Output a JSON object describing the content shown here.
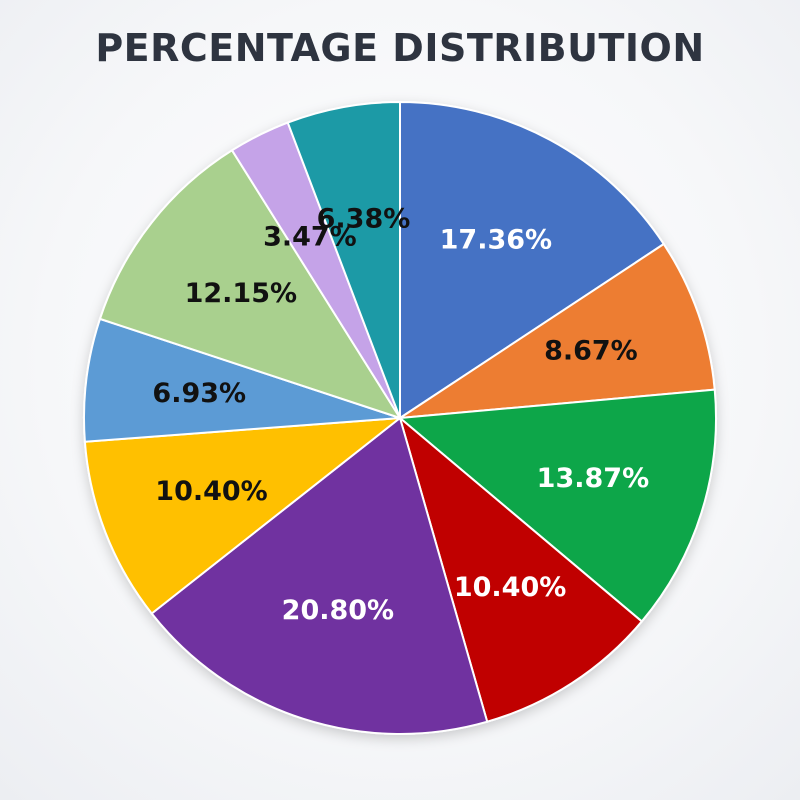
{
  "chart_data": {
    "type": "pie",
    "title": "PERCENTAGE DISTRIBUTION",
    "start_angle_deg": 0,
    "direction": "clockwise",
    "slices": [
      {
        "label": "17.36%",
        "value": 17.36,
        "color": "#4472c4",
        "text_color": "#ffffff"
      },
      {
        "label": "8.67%",
        "value": 8.67,
        "color": "#ed7d31",
        "text_color": "#111111"
      },
      {
        "label": "13.87%",
        "value": 13.87,
        "color": "#0fa64a",
        "text_color": "#ffffff"
      },
      {
        "label": "10.40%",
        "value": 10.4,
        "color": "#c00000",
        "text_color": "#ffffff"
      },
      {
        "label": "20.80%",
        "value": 20.8,
        "color": "#7030a0",
        "text_color": "#ffffff"
      },
      {
        "label": "10.40%",
        "value": 10.4,
        "color": "#ffc000",
        "text_color": "#111111"
      },
      {
        "label": "6.93%",
        "value": 6.93,
        "color": "#5b9bd5",
        "text_color": "#111111"
      },
      {
        "label": "12.15%",
        "value": 12.15,
        "color": "#a9d08e",
        "text_color": "#111111"
      },
      {
        "label": "3.47%",
        "value": 3.47,
        "color": "#c5a3e8",
        "text_color": "#111111"
      },
      {
        "label": "6.38%",
        "value": 6.38,
        "color": "#1a9aa6",
        "text_color": "#111111"
      }
    ]
  }
}
